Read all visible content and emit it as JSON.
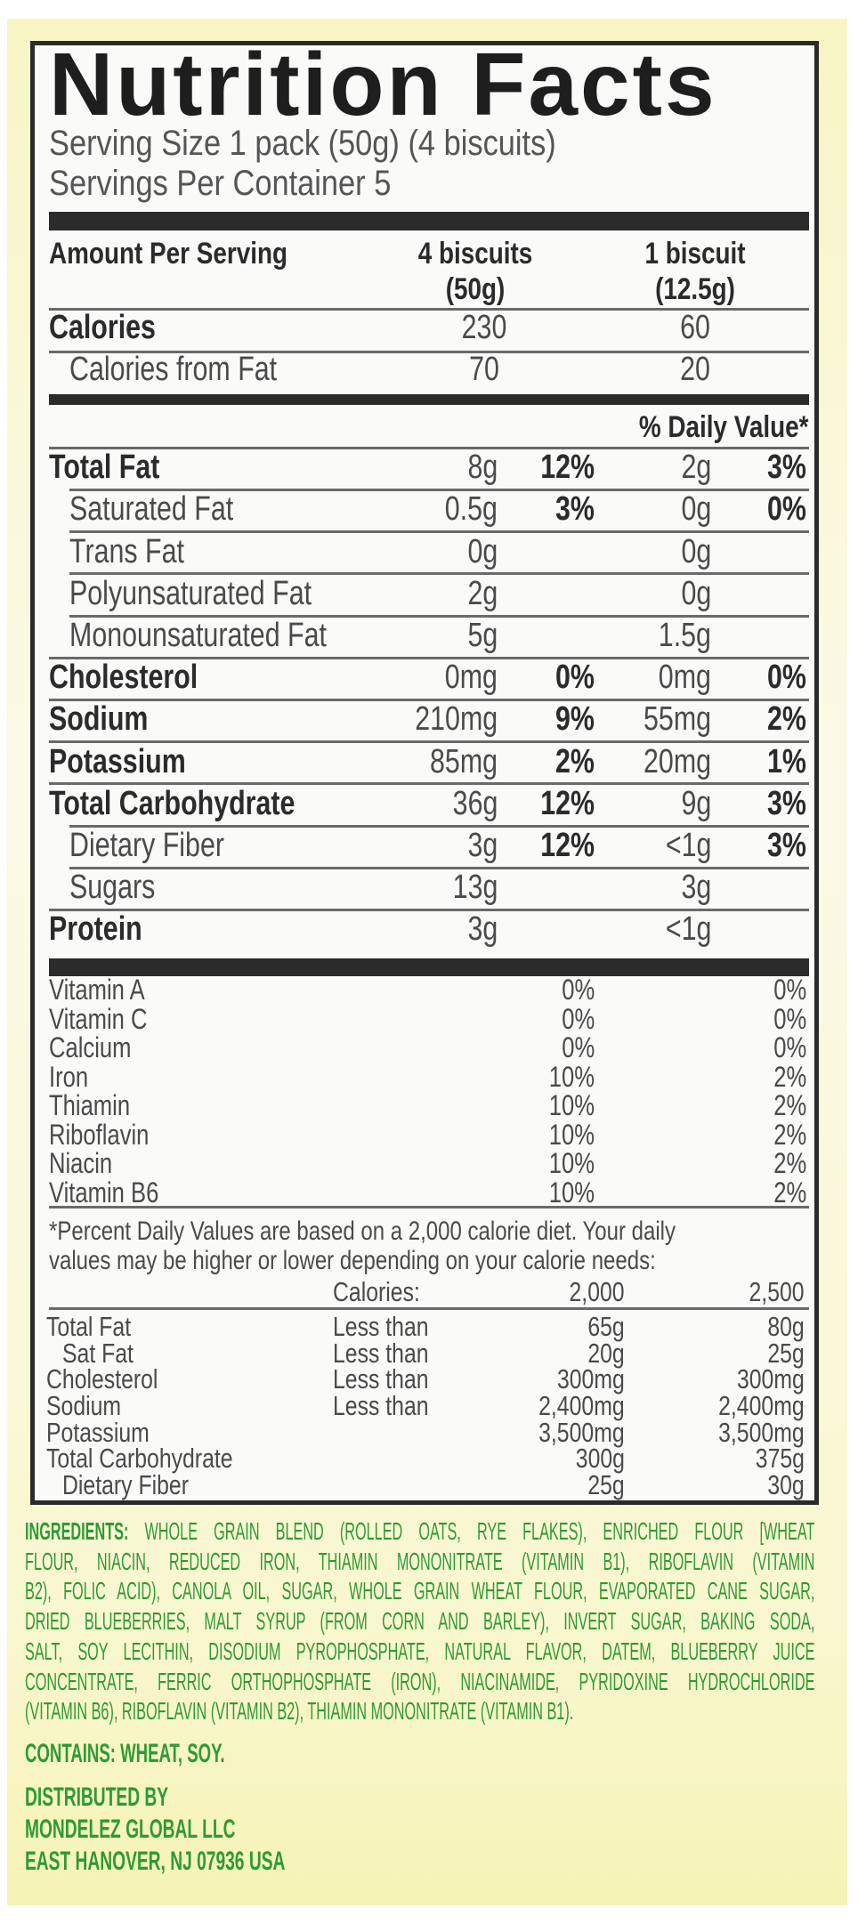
{
  "label": {
    "title": "Nutrition Facts",
    "serving_size": "Serving Size 1 pack (50g) (4 biscuits)",
    "servings_per_container": "Servings Per Container 5",
    "amount_per_serving": "Amount Per Serving",
    "col1_header": [
      "4 biscuits",
      "(50g)"
    ],
    "col2_header": [
      "1 biscuit",
      "(12.5g)"
    ],
    "calories": {
      "label": "Calories",
      "col1": "230",
      "col2": "60"
    },
    "calories_from_fat": {
      "label": "Calories from Fat",
      "col1": "70",
      "col2": "20"
    },
    "daily_value_header": "% Daily Value*",
    "nutrients": [
      {
        "label": "Total Fat",
        "bold": true,
        "indent": false,
        "v1": "8g",
        "p1": "12%",
        "v2": "2g",
        "p2": "3%"
      },
      {
        "label": "Saturated Fat",
        "bold": false,
        "indent": true,
        "v1": "0.5g",
        "p1": "3%",
        "v2": "0g",
        "p2": "0%"
      },
      {
        "label": "Trans Fat",
        "bold": false,
        "indent": true,
        "v1": "0g",
        "p1": "",
        "v2": "0g",
        "p2": ""
      },
      {
        "label": "Polyunsaturated Fat",
        "bold": false,
        "indent": true,
        "v1": "2g",
        "p1": "",
        "v2": "0g",
        "p2": ""
      },
      {
        "label": "Monounsaturated Fat",
        "bold": false,
        "indent": true,
        "v1": "5g",
        "p1": "",
        "v2": "1.5g",
        "p2": ""
      },
      {
        "label": "Cholesterol",
        "bold": true,
        "indent": false,
        "v1": "0mg",
        "p1": "0%",
        "v2": "0mg",
        "p2": "0%"
      },
      {
        "label": "Sodium",
        "bold": true,
        "indent": false,
        "v1": "210mg",
        "p1": "9%",
        "v2": "55mg",
        "p2": "2%"
      },
      {
        "label": "Potassium",
        "bold": true,
        "indent": false,
        "v1": "85mg",
        "p1": "2%",
        "v2": "20mg",
        "p2": "1%"
      },
      {
        "label": "Total Carbohydrate",
        "bold": true,
        "indent": false,
        "v1": "36g",
        "p1": "12%",
        "v2": "9g",
        "p2": "3%"
      },
      {
        "label": "Dietary Fiber",
        "bold": false,
        "indent": true,
        "v1": "3g",
        "p1": "12%",
        "v2": "<1g",
        "p2": "3%"
      },
      {
        "label": "Sugars",
        "bold": false,
        "indent": true,
        "v1": "13g",
        "p1": "",
        "v2": "3g",
        "p2": ""
      },
      {
        "label": "Protein",
        "bold": true,
        "indent": false,
        "v1": "3g",
        "p1": "",
        "v2": "<1g",
        "p2": ""
      }
    ],
    "vitamins": [
      {
        "label": "Vitamin A",
        "p1": "0%",
        "p2": "0%"
      },
      {
        "label": "Vitamin C",
        "p1": "0%",
        "p2": "0%"
      },
      {
        "label": "Calcium",
        "p1": "0%",
        "p2": "0%"
      },
      {
        "label": "Iron",
        "p1": "10%",
        "p2": "2%"
      },
      {
        "label": "Thiamin",
        "p1": "10%",
        "p2": "2%"
      },
      {
        "label": "Riboflavin",
        "p1": "10%",
        "p2": "2%"
      },
      {
        "label": "Niacin",
        "p1": "10%",
        "p2": "2%"
      },
      {
        "label": "Vitamin B6",
        "p1": "10%",
        "p2": "2%"
      }
    ],
    "footnote": [
      "*Percent Daily Values are based on a 2,000 calorie diet. Your daily",
      " values may be higher or lower depending on your calorie needs:"
    ],
    "reference": {
      "header": {
        "label": "Calories:",
        "c1": "2,000",
        "c2": "2,500"
      },
      "rows": [
        {
          "label": "Total Fat",
          "indent": false,
          "qual": "Less than",
          "c1": "65g",
          "c2": "80g"
        },
        {
          "label": "Sat Fat",
          "indent": true,
          "qual": "Less than",
          "c1": "20g",
          "c2": "25g"
        },
        {
          "label": "Cholesterol",
          "indent": false,
          "qual": "Less than",
          "c1": "300mg",
          "c2": "300mg"
        },
        {
          "label": "Sodium",
          "indent": false,
          "qual": "Less than",
          "c1": "2,400mg",
          "c2": "2,400mg"
        },
        {
          "label": "Potassium",
          "indent": false,
          "qual": "",
          "c1": "3,500mg",
          "c2": "3,500mg"
        },
        {
          "label": "Total Carbohydrate",
          "indent": false,
          "qual": "",
          "c1": "300g",
          "c2": "375g"
        },
        {
          "label": "Dietary Fiber",
          "indent": true,
          "qual": "",
          "c1": "25g",
          "c2": "30g"
        }
      ]
    }
  },
  "ingredients": {
    "heading": "INGREDIENTS:",
    "lines": [
      " WHOLE GRAIN BLEND (ROLLED OATS, RYE FLAKES), ENRICHED FLOUR [WHEAT",
      "FLOUR, NIACIN, REDUCED IRON, THIAMIN MONONITRATE (VITAMIN B1), RIBOFLAVIN (VITAMIN",
      "B2), FOLIC ACID), CANOLA OIL, SUGAR, WHOLE GRAIN WHEAT FLOUR, EVAPORATED CANE SUGAR,",
      "DRIED BLUEBERRIES, MALT SYRUP (FROM CORN AND BARLEY), INVERT SUGAR, BAKING SODA,",
      "SALT, SOY LECITHIN, DISODIUM PYROPHOSPHATE, NATURAL FLAVOR, DATEM, BLUEBERRY JUICE",
      "CONCENTRATE, FERRIC ORTHOPHOSPHATE (IRON), NIACINAMIDE, PYRIDOXINE HYDROCHLORIDE",
      "(VITAMIN B6), RIBOFLAVIN (VITAMIN B2), THIAMIN MONONITRATE (VITAMIN B1)."
    ],
    "contains": "CONTAINS: WHEAT, SOY.",
    "distributor": [
      "DISTRIBUTED BY",
      "MONDELEZ GLOBAL LLC",
      "EAST HANOVER, NJ 07936 USA"
    ]
  },
  "colors": {
    "ink": "#2b2b2b",
    "text_gray": "#4a4a4a",
    "ingredients_green": "#2f9a35",
    "background_yellow": "#f7f5c4"
  }
}
